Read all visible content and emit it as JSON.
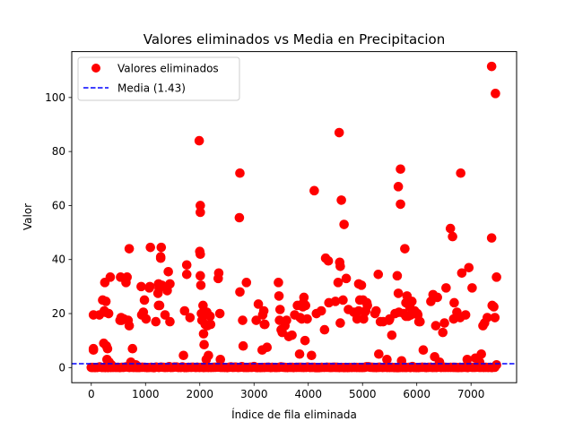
{
  "chart_data": {
    "type": "scatter",
    "title": "Valores eliminados vs Media en Precipitacion",
    "xlabel": "Índice de fila eliminada",
    "ylabel": "Valor",
    "xlim": [
      -360,
      7840
    ],
    "ylim": [
      -5.6,
      117
    ],
    "xticks": [
      0,
      1000,
      2000,
      3000,
      4000,
      5000,
      6000,
      7000
    ],
    "yticks": [
      0,
      20,
      40,
      60,
      80,
      100
    ],
    "grid": false,
    "legend_position": "top-left",
    "series": [
      {
        "name": "Valores eliminados",
        "kind": "scatter",
        "color": "#ff0000",
        "points": [
          [
            40,
            19.5
          ],
          [
            40,
            7
          ],
          [
            40,
            6.5
          ],
          [
            150,
            19.5
          ],
          [
            210,
            25
          ],
          [
            230,
            9
          ],
          [
            240,
            21
          ],
          [
            250,
            31.5
          ],
          [
            260,
            20.5
          ],
          [
            270,
            24.5
          ],
          [
            280,
            8
          ],
          [
            290,
            3
          ],
          [
            300,
            7
          ],
          [
            320,
            20
          ],
          [
            330,
            2
          ],
          [
            350,
            33.5
          ],
          [
            370,
            1
          ],
          [
            530,
            17.5
          ],
          [
            540,
            33.5
          ],
          [
            550,
            18.5
          ],
          [
            560,
            17.5
          ],
          [
            600,
            18
          ],
          [
            640,
            31.5
          ],
          [
            660,
            33.5
          ],
          [
            680,
            17.5
          ],
          [
            700,
            15.5
          ],
          [
            700,
            44
          ],
          [
            730,
            2
          ],
          [
            760,
            7
          ],
          [
            820,
            1
          ],
          [
            850,
            0.5
          ],
          [
            920,
            30
          ],
          [
            930,
            19.5
          ],
          [
            960,
            20.5
          ],
          [
            980,
            25
          ],
          [
            1010,
            18
          ],
          [
            1070,
            29.5
          ],
          [
            1080,
            30
          ],
          [
            1090,
            44.5
          ],
          [
            1190,
            17
          ],
          [
            1230,
            27.5
          ],
          [
            1240,
            31
          ],
          [
            1240,
            23
          ],
          [
            1250,
            29.5
          ],
          [
            1260,
            23
          ],
          [
            1280,
            41
          ],
          [
            1280,
            40.5
          ],
          [
            1290,
            44.5
          ],
          [
            1300,
            30.5
          ],
          [
            1360,
            19.5
          ],
          [
            1400,
            28.5
          ],
          [
            1420,
            35.5
          ],
          [
            1450,
            31
          ],
          [
            1450,
            17
          ],
          [
            1700,
            4.5
          ],
          [
            1720,
            21
          ],
          [
            1760,
            34.5
          ],
          [
            1760,
            38
          ],
          [
            1820,
            18.5
          ],
          [
            1990,
            84
          ],
          [
            2010,
            60
          ],
          [
            2010,
            57.5
          ],
          [
            2010,
            42
          ],
          [
            2000,
            43
          ],
          [
            2010,
            34
          ],
          [
            2020,
            30.5
          ],
          [
            2030,
            20
          ],
          [
            2040,
            17.5
          ],
          [
            2060,
            23
          ],
          [
            2070,
            12.5
          ],
          [
            2080,
            8.5
          ],
          [
            2090,
            19.5
          ],
          [
            2100,
            16
          ],
          [
            2120,
            3
          ],
          [
            2130,
            20.5
          ],
          [
            2140,
            15.5
          ],
          [
            2160,
            4.5
          ],
          [
            2190,
            19
          ],
          [
            2200,
            16
          ],
          [
            2340,
            33
          ],
          [
            2350,
            35
          ],
          [
            2370,
            20
          ],
          [
            2380,
            3
          ],
          [
            2740,
            72
          ],
          [
            2730,
            55.5
          ],
          [
            2740,
            28
          ],
          [
            2790,
            17.5
          ],
          [
            2800,
            8
          ],
          [
            2860,
            31.5
          ],
          [
            3040,
            17.5
          ],
          [
            3080,
            23.5
          ],
          [
            3150,
            6.5
          ],
          [
            3160,
            19.5
          ],
          [
            3180,
            21
          ],
          [
            3190,
            16
          ],
          [
            3200,
            16
          ],
          [
            3240,
            7.5
          ],
          [
            3450,
            31.5
          ],
          [
            3460,
            26.5
          ],
          [
            3470,
            17.5
          ],
          [
            3480,
            21.5
          ],
          [
            3500,
            14
          ],
          [
            3520,
            13
          ],
          [
            3570,
            15.5
          ],
          [
            3600,
            17.5
          ],
          [
            3640,
            11.5
          ],
          [
            3700,
            12
          ],
          [
            3750,
            19.5
          ],
          [
            3800,
            23
          ],
          [
            3840,
            5
          ],
          [
            3850,
            18.5
          ],
          [
            3880,
            18
          ],
          [
            3900,
            22.5
          ],
          [
            3910,
            24
          ],
          [
            3920,
            26
          ],
          [
            3940,
            10
          ],
          [
            3950,
            23
          ],
          [
            3980,
            18
          ],
          [
            4060,
            4.5
          ],
          [
            4110,
            65.5
          ],
          [
            4150,
            20
          ],
          [
            4240,
            21
          ],
          [
            4300,
            14
          ],
          [
            4320,
            40.5
          ],
          [
            4370,
            39.5
          ],
          [
            4380,
            24
          ],
          [
            4500,
            24.5
          ],
          [
            4550,
            31.5
          ],
          [
            4570,
            87
          ],
          [
            4580,
            39
          ],
          [
            4590,
            37.5
          ],
          [
            4590,
            16.5
          ],
          [
            4610,
            62
          ],
          [
            4640,
            25
          ],
          [
            4660,
            53
          ],
          [
            4700,
            33
          ],
          [
            4740,
            21.5
          ],
          [
            4840,
            20.5
          ],
          [
            4900,
            18
          ],
          [
            4930,
            31
          ],
          [
            4930,
            21
          ],
          [
            4950,
            25
          ],
          [
            4980,
            30.5
          ],
          [
            5010,
            25
          ],
          [
            5020,
            18
          ],
          [
            5040,
            20.5
          ],
          [
            5060,
            21
          ],
          [
            5080,
            24
          ],
          [
            5090,
            23
          ],
          [
            5230,
            20
          ],
          [
            5250,
            21
          ],
          [
            5290,
            34.5
          ],
          [
            5300,
            5
          ],
          [
            5330,
            17
          ],
          [
            5380,
            17
          ],
          [
            5450,
            3
          ],
          [
            5490,
            17.5
          ],
          [
            5500,
            18
          ],
          [
            5540,
            12
          ],
          [
            5600,
            20
          ],
          [
            5640,
            34
          ],
          [
            5660,
            67
          ],
          [
            5660,
            27.5
          ],
          [
            5670,
            20.5
          ],
          [
            5700,
            73.5
          ],
          [
            5700,
            60.5
          ],
          [
            5720,
            2.5
          ],
          [
            5760,
            20
          ],
          [
            5780,
            44
          ],
          [
            5800,
            24
          ],
          [
            5800,
            19
          ],
          [
            5820,
            26.5
          ],
          [
            5840,
            19
          ],
          [
            5870,
            22.5
          ],
          [
            5890,
            19.5
          ],
          [
            5910,
            24.5
          ],
          [
            5960,
            21
          ],
          [
            6010,
            20
          ],
          [
            6020,
            19.5
          ],
          [
            6040,
            17
          ],
          [
            6060,
            17
          ],
          [
            6120,
            6.5
          ],
          [
            6260,
            24.5
          ],
          [
            6300,
            27
          ],
          [
            6330,
            4
          ],
          [
            6350,
            15.5
          ],
          [
            6380,
            26
          ],
          [
            6420,
            2
          ],
          [
            6480,
            13
          ],
          [
            6510,
            16.5
          ],
          [
            6540,
            29.5
          ],
          [
            6620,
            51.5
          ],
          [
            6660,
            48.5
          ],
          [
            6680,
            18
          ],
          [
            6690,
            24
          ],
          [
            6740,
            20.5
          ],
          [
            6800,
            18.5
          ],
          [
            6810,
            72
          ],
          [
            6830,
            35
          ],
          [
            6900,
            19.5
          ],
          [
            6930,
            3
          ],
          [
            6960,
            37
          ],
          [
            7020,
            29.5
          ],
          [
            7080,
            3.5
          ],
          [
            7160,
            2
          ],
          [
            7190,
            5
          ],
          [
            7220,
            15.5
          ],
          [
            7250,
            16.5
          ],
          [
            7300,
            18.5
          ],
          [
            7380,
            111.5
          ],
          [
            7380,
            48
          ],
          [
            7390,
            23
          ],
          [
            7420,
            22.5
          ],
          [
            7440,
            18.5
          ],
          [
            7450,
            101.5
          ],
          [
            7470,
            33.5
          ],
          [
            7470,
            1
          ]
        ],
        "zero_band": [
          [
            0,
            7440
          ],
          [
            0,
            0.4
          ],
          [
            0,
            1.6
          ]
        ]
      },
      {
        "name": "Media (1.43)",
        "kind": "hline",
        "color": "#0000ff",
        "style": "dashed",
        "y": 1.43
      }
    ]
  }
}
